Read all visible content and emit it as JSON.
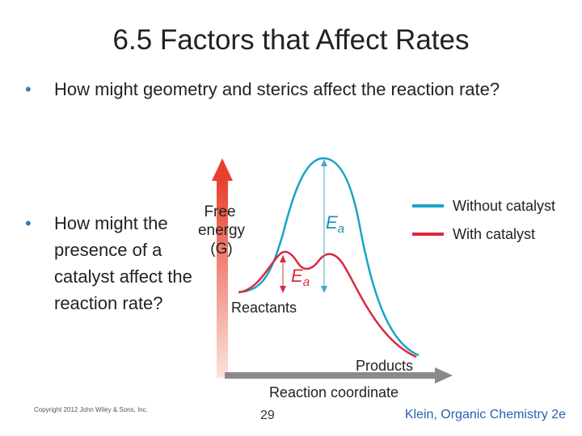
{
  "title": "6.5 Factors that Affect Rates",
  "bullets": [
    "How might geometry and sterics affect the reaction rate?",
    "How might the presence of a catalyst affect the reaction rate?"
  ],
  "figure": {
    "y_axis_label": [
      "Free",
      "energy",
      "(G)"
    ],
    "x_axis_label": "Reaction coordinate",
    "reactants": "Reactants",
    "products": "Products",
    "ea_label": {
      "main": "E",
      "sub": "a"
    },
    "legend": [
      {
        "name": "Without catalyst",
        "color": "#1ba3c6"
      },
      {
        "name": "With catalyst",
        "color": "#d92b3f"
      }
    ]
  },
  "footer": {
    "copyright": "Copyright 2012 John Wiley & Sons, Inc.",
    "page": "29",
    "credit": "Klein, Organic Chemistry 2e"
  }
}
